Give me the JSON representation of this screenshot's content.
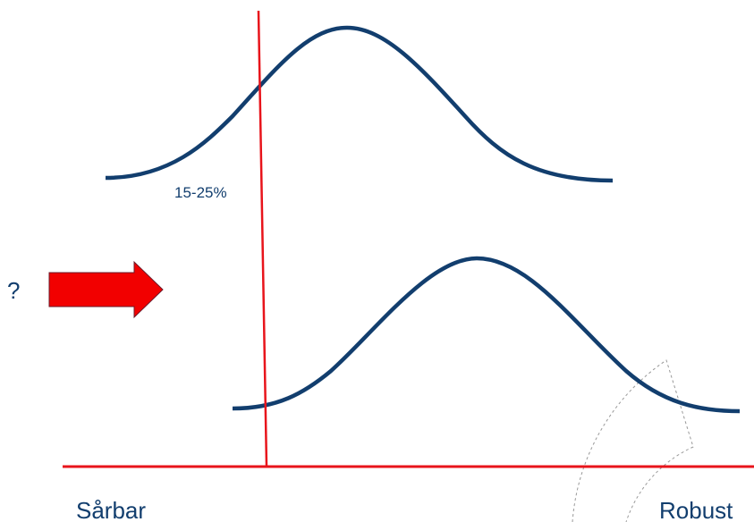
{
  "annotation": "15-25%",
  "question": "?",
  "axis": {
    "left_label": "Sårbar",
    "right_label": "Robust"
  }
}
